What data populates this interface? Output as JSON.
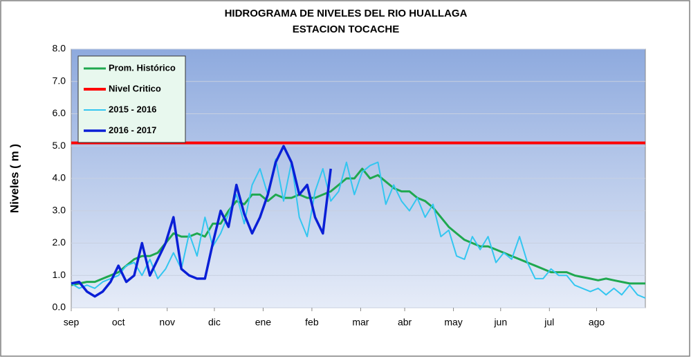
{
  "chart_data": {
    "type": "line",
    "title": "HIDROGRAMA DE NIVELES  DEL RIO HUALLAGA",
    "subtitle": "ESTACION TOCACHE",
    "y_label": "Niveles ( m )",
    "legend": "upper left",
    "grid": true,
    "xlim": [
      0,
      365
    ],
    "xticks": [
      {
        "value": 0,
        "label": "sep"
      },
      {
        "value": 30,
        "label": "oct"
      },
      {
        "value": 61,
        "label": "nov"
      },
      {
        "value": 91,
        "label": "dic"
      },
      {
        "value": 122,
        "label": "ene"
      },
      {
        "value": 153,
        "label": "feb"
      },
      {
        "value": 184,
        "label": "mar"
      },
      {
        "value": 212,
        "label": "abr"
      },
      {
        "value": 243,
        "label": "may"
      },
      {
        "value": 273,
        "label": "jun"
      },
      {
        "value": 304,
        "label": "jul"
      },
      {
        "value": 334,
        "label": "ago"
      }
    ],
    "ylim": [
      0,
      8
    ],
    "yticks": [
      {
        "value": 0,
        "label": "0.0"
      },
      {
        "value": 1,
        "label": "1.0"
      },
      {
        "value": 2,
        "label": "2.0"
      },
      {
        "value": 3,
        "label": "3.0"
      },
      {
        "value": 4,
        "label": "4.0"
      },
      {
        "value": 5,
        "label": "5.0"
      },
      {
        "value": 6,
        "label": "6.0"
      },
      {
        "value": 7,
        "label": "7.0"
      },
      {
        "value": 8,
        "label": "8.0"
      }
    ],
    "x": [
      0,
      5,
      10,
      15,
      20,
      25,
      30,
      35,
      40,
      45,
      50,
      55,
      60,
      65,
      70,
      75,
      80,
      85,
      90,
      95,
      100,
      105,
      110,
      115,
      120,
      125,
      130,
      135,
      140,
      145,
      150,
      155,
      160,
      165,
      170,
      175,
      180,
      185,
      190,
      195,
      200,
      205,
      210,
      215,
      220,
      225,
      230,
      235,
      240,
      245,
      250,
      255,
      260,
      265,
      270,
      275,
      280,
      285,
      290,
      295,
      300,
      305,
      310,
      315,
      320,
      325,
      330,
      335,
      340,
      345,
      350,
      355,
      360,
      365
    ],
    "series": [
      {
        "name": "Prom. Histórico",
        "color": "#1fa84f",
        "width": 3,
        "values": [
          0.7,
          0.75,
          0.8,
          0.8,
          0.9,
          1.0,
          1.1,
          1.3,
          1.5,
          1.6,
          1.6,
          1.7,
          2.0,
          2.3,
          2.2,
          2.2,
          2.3,
          2.2,
          2.6,
          2.6,
          3.0,
          3.3,
          3.2,
          3.5,
          3.5,
          3.3,
          3.5,
          3.4,
          3.4,
          3.5,
          3.4,
          3.4,
          3.5,
          3.6,
          3.8,
          4.0,
          4.0,
          4.3,
          4.0,
          4.1,
          3.9,
          3.7,
          3.6,
          3.6,
          3.4,
          3.3,
          3.1,
          2.8,
          2.5,
          2.3,
          2.1,
          2.0,
          1.9,
          1.9,
          1.8,
          1.7,
          1.6,
          1.5,
          1.4,
          1.3,
          1.2,
          1.1,
          1.1,
          1.1,
          1.0,
          0.95,
          0.9,
          0.85,
          0.9,
          0.85,
          0.8,
          0.75,
          0.75,
          0.75
        ]
      },
      {
        "name": "Nivel Critico",
        "color": "#ff0000",
        "width": 4,
        "x": [
          0,
          365
        ],
        "values": [
          5.1,
          5.1
        ]
      },
      {
        "name": "2015 - 2016",
        "color": "#33c6f0",
        "width": 2,
        "values": [
          0.75,
          0.6,
          0.7,
          0.6,
          0.8,
          0.9,
          1.0,
          1.3,
          1.4,
          1.0,
          1.5,
          0.9,
          1.2,
          1.7,
          1.2,
          2.3,
          1.6,
          2.8,
          1.9,
          2.3,
          2.9,
          3.5,
          2.6,
          3.8,
          4.3,
          3.5,
          4.6,
          3.3,
          4.5,
          2.8,
          2.2,
          3.6,
          4.3,
          3.3,
          3.6,
          4.5,
          3.5,
          4.2,
          4.4,
          4.5,
          3.2,
          3.8,
          3.3,
          3.0,
          3.4,
          2.8,
          3.2,
          2.2,
          2.4,
          1.6,
          1.5,
          2.2,
          1.8,
          2.2,
          1.4,
          1.7,
          1.5,
          2.2,
          1.4,
          0.9,
          0.9,
          1.2,
          1.0,
          1.0,
          0.7,
          0.6,
          0.5,
          0.6,
          0.4,
          0.6,
          0.4,
          0.7,
          0.4,
          0.3
        ]
      },
      {
        "name": "2016 - 2017",
        "color": "#0a1fd6",
        "width": 3.5,
        "values": [
          0.75,
          0.8,
          0.5,
          0.35,
          0.5,
          0.8,
          1.3,
          0.8,
          1.0,
          2.0,
          1.0,
          1.5,
          2.0,
          2.8,
          1.2,
          1.0,
          0.9,
          0.9,
          2.0,
          3.0,
          2.5,
          3.8,
          2.9,
          2.3,
          2.8,
          3.5,
          4.5,
          5.0,
          4.5,
          3.5,
          3.8,
          2.8,
          2.3,
          4.3,
          null,
          null,
          null,
          null,
          null,
          null,
          null,
          null,
          null,
          null,
          null,
          null,
          null,
          null,
          null,
          null,
          null,
          null,
          null,
          null,
          null,
          null,
          null,
          null,
          null,
          null,
          null,
          null,
          null,
          null,
          null,
          null,
          null,
          null,
          null,
          null,
          null,
          null,
          null,
          null
        ]
      }
    ]
  }
}
